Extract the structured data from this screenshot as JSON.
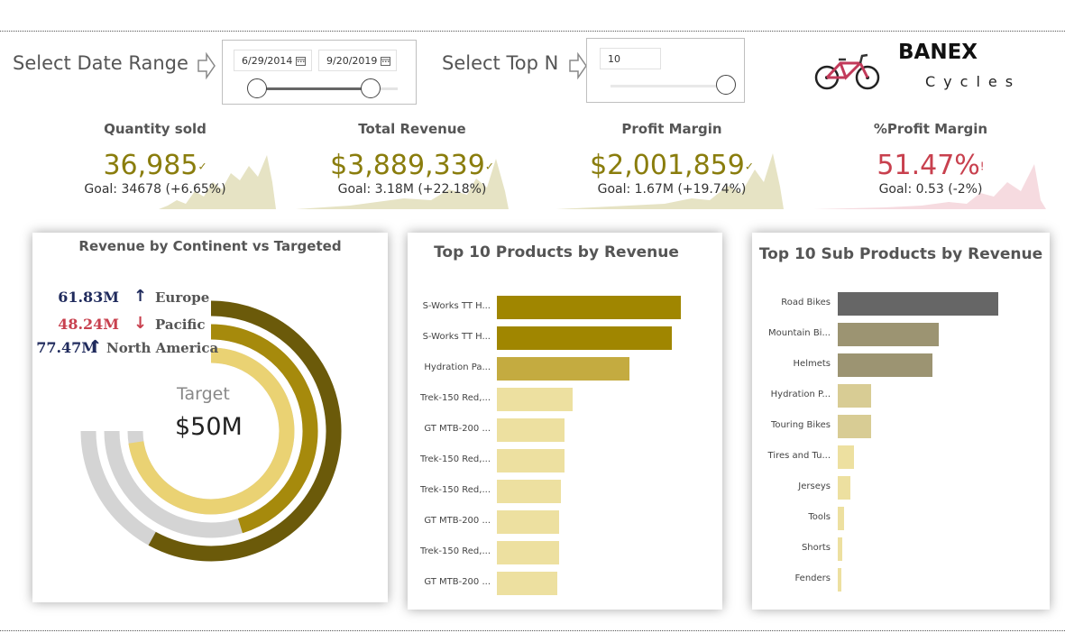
{
  "filters": {
    "date_label": "Select Date Range",
    "date_start": "6/29/2014",
    "date_end": "9/20/2019",
    "topn_label": "Select Top N",
    "topn_value": "10"
  },
  "brand": {
    "name": "BANEX",
    "sub": "Cycles"
  },
  "kpis": [
    {
      "title": "Quantity sold",
      "value": "36,985",
      "mark": "✓",
      "goal": "Goal: 34678 (+6.65%)",
      "color": "#8a7d0d",
      "spark_color": "#e6e3c4"
    },
    {
      "title": "Total Revenue",
      "value": "$3,889,339",
      "mark": "✓",
      "goal": "Goal: 3.18M (+22.18%)",
      "color": "#8a7d0d",
      "spark_color": "#e6e3c4"
    },
    {
      "title": "Profit Margin",
      "value": "$2,001,859",
      "mark": "✓",
      "goal": "Goal: 1.67M (+19.74%)",
      "color": "#8a7d0d",
      "spark_color": "#e6e3c4"
    },
    {
      "title": "%Profit Margin",
      "value": "51.47%",
      "mark": "!",
      "goal": "Goal: 0.53 (-2%)",
      "color": "#c8404e",
      "spark_color": "#f6dbe0"
    }
  ],
  "continent": {
    "title": "Revenue by Continent vs Targeted",
    "target_label": "Target",
    "target_value": "$50M",
    "rings": [
      {
        "name": "Europe",
        "value": "61.83M",
        "arrow": "↑",
        "value_color": "#1f2a5c",
        "arrow_color": "#1f2a5c"
      },
      {
        "name": "Pacific",
        "value": "48.24M",
        "arrow": "↓",
        "value_color": "#c8404e",
        "arrow_color": "#c8404e"
      },
      {
        "name": "North America",
        "value": "77.47M",
        "arrow": "↑",
        "value_color": "#1f2a5c",
        "arrow_color": "#1f2a5c"
      }
    ]
  },
  "chart_data": [
    {
      "type": "bar",
      "orientation": "horizontal",
      "title": "Top 10 Products by Revenue",
      "categories": [
        "S-Works TT H...",
        "S-Works TT H...",
        "Hydration Pa...",
        "Trek-150 Red,...",
        "GT MTB-200 ...",
        "Trek-150 Red,...",
        "Trek-150 Red,...",
        "GT MTB-200 ...",
        "Trek-150 Red,...",
        "GT MTB-200 ..."
      ],
      "values": [
        1.0,
        0.95,
        0.72,
        0.41,
        0.37,
        0.37,
        0.35,
        0.34,
        0.34,
        0.33
      ],
      "colors": [
        "#a08600",
        "#a08600",
        "#c4ab40",
        "#ede0a0",
        "#ede0a0",
        "#ede0a0",
        "#ede0a0",
        "#ede0a0",
        "#ede0a0",
        "#ede0a0"
      ]
    },
    {
      "type": "bar",
      "orientation": "horizontal",
      "title": "Top 10 Sub Products by Revenue",
      "categories": [
        "Road Bikes",
        "Mountain Bi...",
        "Helmets",
        "Hydration P...",
        "Touring Bikes",
        "Tires and Tu...",
        "Jerseys",
        "Tools",
        "Shorts",
        "Fenders"
      ],
      "values": [
        1.0,
        0.63,
        0.59,
        0.21,
        0.21,
        0.1,
        0.08,
        0.04,
        0.03,
        0.02
      ],
      "colors": [
        "#666666",
        "#9c9472",
        "#9c9472",
        "#d8cc94",
        "#d8cc94",
        "#ede0a0",
        "#ede0a0",
        "#ede0a0",
        "#ede0a0",
        "#ede0a0"
      ]
    },
    {
      "type": "radial_bar",
      "title": "Revenue by Continent vs Targeted",
      "categories": [
        "Europe",
        "Pacific",
        "North America"
      ],
      "values": [
        61.83,
        48.24,
        77.47
      ],
      "target": 50,
      "unit": "M",
      "colors": [
        "#6b5a0a",
        "#a68a0c",
        "#ead273"
      ],
      "track_color": "#d4d4d4"
    }
  ]
}
